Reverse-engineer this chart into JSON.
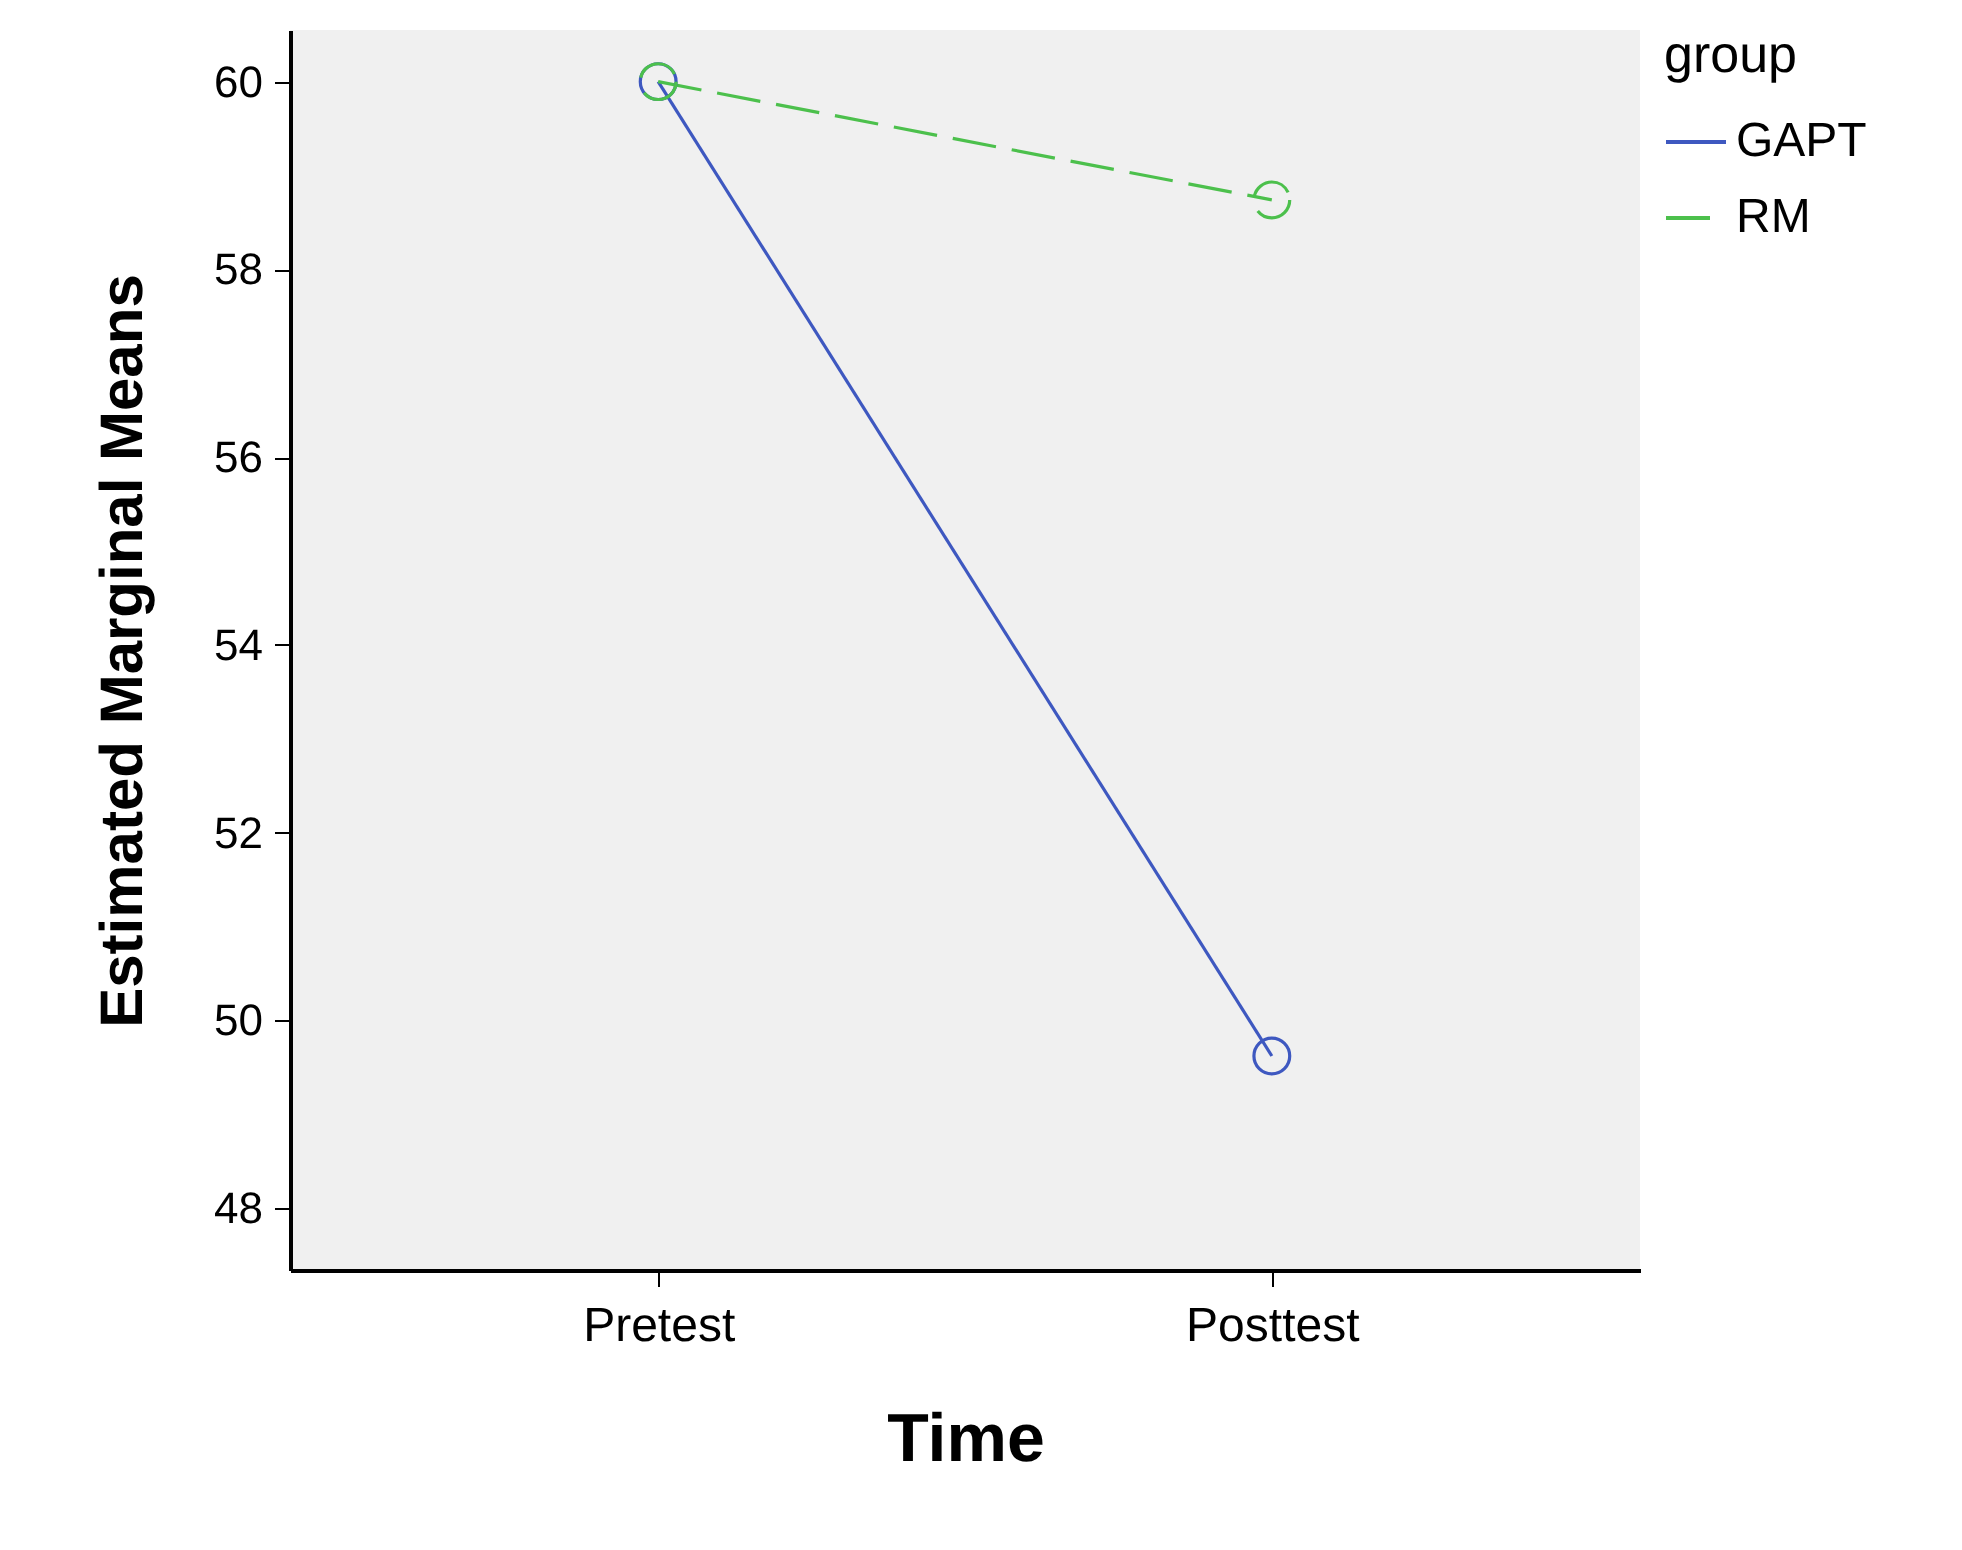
{
  "chart_data": {
    "type": "line",
    "xlabel": "Time",
    "ylabel": "Estimated Marginal Means",
    "legend_title": "group",
    "categories": [
      "Pretest",
      "Posttest"
    ],
    "series": [
      {
        "name": "GAPT",
        "color": "#3e58c0",
        "values": [
          60.0,
          49.62
        ],
        "line_style": "solid"
      },
      {
        "name": "RM",
        "color": "#4cc04c",
        "values": [
          60.0,
          58.74
        ],
        "line_style": "dashed"
      }
    ],
    "ylim": [
      47.34,
      60.55
    ],
    "yticks": [
      48,
      50,
      52,
      54,
      56,
      58,
      60
    ],
    "grid": false,
    "legend": "top right",
    "marker": "circle"
  }
}
